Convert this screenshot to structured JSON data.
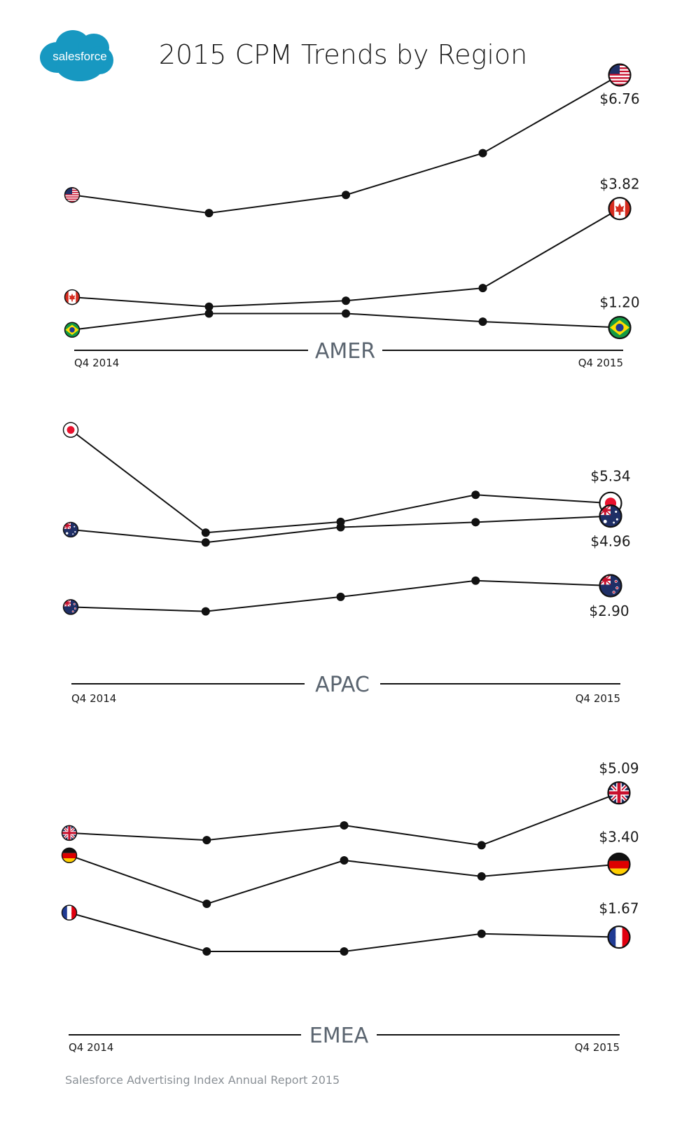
{
  "title": "2015 CPM Trends by Region",
  "logo_text": "salesforce",
  "footer": "Salesforce Advertising Index Annual Report 2015",
  "colors": {
    "line": "#111111",
    "logo": "#1798c1",
    "region_label": "#5b6570"
  },
  "chart_data": [
    {
      "type": "line",
      "region": "AMER",
      "x": [
        "Q4 2014",
        "",
        "",
        "",
        "Q4 2015"
      ],
      "x_start_label": "Q4 2014",
      "x_end_label": "Q4 2015",
      "ylim": [
        0.9,
        7.1
      ],
      "series": [
        {
          "name": "",
          "flag": "us-flag",
          "values": [
            4.12,
            3.72,
            4.12,
            5.04,
            6.76
          ],
          "end_label": "$6.76"
        },
        {
          "name": "",
          "flag": "canada-flag",
          "values": [
            1.87,
            1.66,
            1.79,
            2.07,
            3.82
          ],
          "end_label": "$3.82"
        },
        {
          "name": "",
          "flag": "brazil-flag",
          "values": [
            1.15,
            1.51,
            1.51,
            1.33,
            1.2
          ],
          "end_label": "$1.20"
        }
      ]
    },
    {
      "type": "line",
      "region": "APAC",
      "x": [
        "Q4 2014",
        "",
        "",
        "",
        "Q4 2015"
      ],
      "x_start_label": "Q4 2014",
      "x_end_label": "Q4 2015",
      "ylim": [
        1.2,
        8.0
      ],
      "series": [
        {
          "name": "",
          "flag": "japan-flag",
          "values": [
            7.51,
            4.47,
            4.79,
            5.59,
            5.34
          ],
          "end_label": "$5.34"
        },
        {
          "name": "",
          "flag": "australia-flag",
          "values": [
            4.56,
            4.18,
            4.63,
            4.78,
            4.96
          ],
          "end_label": "$4.96"
        },
        {
          "name": "",
          "flag": "new-zealand-flag",
          "values": [
            2.27,
            2.14,
            2.57,
            3.05,
            2.9
          ],
          "end_label": "$2.90"
        }
      ]
    },
    {
      "type": "line",
      "region": "EMEA",
      "x": [
        "Q4 2014",
        "",
        "",
        "",
        "Q4 2015"
      ],
      "x_start_label": "Q4 2014",
      "x_end_label": "Q4 2015",
      "ylim": [
        0.5,
        5.7
      ],
      "series": [
        {
          "name": "",
          "flag": "uk-flag",
          "values": [
            4.14,
            3.97,
            4.32,
            3.85,
            5.09
          ],
          "end_label": "$5.09"
        },
        {
          "name": "",
          "flag": "germany-flag",
          "values": [
            3.61,
            2.46,
            3.49,
            3.11,
            3.4
          ],
          "end_label": "$3.40"
        },
        {
          "name": "",
          "flag": "france-flag",
          "values": [
            2.25,
            1.33,
            1.33,
            1.75,
            1.67
          ],
          "end_label": "$1.67"
        }
      ]
    }
  ]
}
